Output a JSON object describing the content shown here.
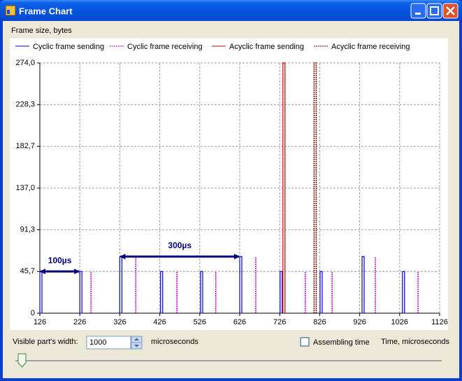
{
  "window": {
    "title": "Frame Chart"
  },
  "chart_data": {
    "type": "pulse",
    "y_label": "Frame size, bytes",
    "x_label": "Time,  microseconds",
    "xlim": [
      126,
      1126
    ],
    "xticks": [
      126,
      226,
      326,
      426,
      526,
      626,
      726,
      826,
      926,
      1026,
      1126
    ],
    "ylim": [
      0,
      274
    ],
    "yticks": [
      0,
      {
        "value": 45.7,
        "label": "45,7"
      },
      {
        "value": 91.3,
        "label": "91,3"
      },
      {
        "value": 137,
        "label": "137,0"
      },
      {
        "value": 182.7,
        "label": "182,7"
      },
      {
        "value": 228.3,
        "label": "228,3"
      },
      {
        "value": 274,
        "label": "274,0"
      }
    ],
    "grid": true,
    "series": [
      {
        "name": "Cyclic frame sending",
        "color": "#0000cc",
        "style": "solid",
        "kind": "sending",
        "x": [
          126,
          226,
          326,
          428,
          528,
          626,
          727,
          827,
          932,
          1033
        ],
        "values": [
          45.7,
          45.7,
          62,
          45.7,
          45.7,
          62,
          45.7,
          45.7,
          62,
          45.7
        ]
      },
      {
        "name": "Cyclic frame receiving",
        "color": "#cc00cc",
        "style": "dashed",
        "kind": "receiving",
        "x": [
          254,
          366,
          469,
          566,
          666,
          790,
          857,
          965,
          1072
        ],
        "values": [
          45.7,
          62,
          45.7,
          45.7,
          62,
          45.7,
          45.7,
          62,
          45.7
        ]
      },
      {
        "name": "Acyclic frame sending",
        "color": "#cc0000",
        "style": "solid",
        "kind": "sending",
        "x": [
          734
        ],
        "values": [
          274
        ]
      },
      {
        "name": "Acyclic frame receiving",
        "color": "#800000",
        "style": "dashed",
        "kind": "sending",
        "x": [
          812
        ],
        "values": [
          274
        ]
      }
    ],
    "annotations": [
      {
        "text": "100µs",
        "x": [
          126,
          226
        ],
        "y": 45.7
      },
      {
        "text": "300µs",
        "x": [
          326,
          626
        ],
        "y": 62
      }
    ]
  },
  "controls": {
    "width_label": "Visible part's width:",
    "width_value": "1000",
    "width_unit": "microseconds",
    "assembling_label": "Assembling time"
  }
}
